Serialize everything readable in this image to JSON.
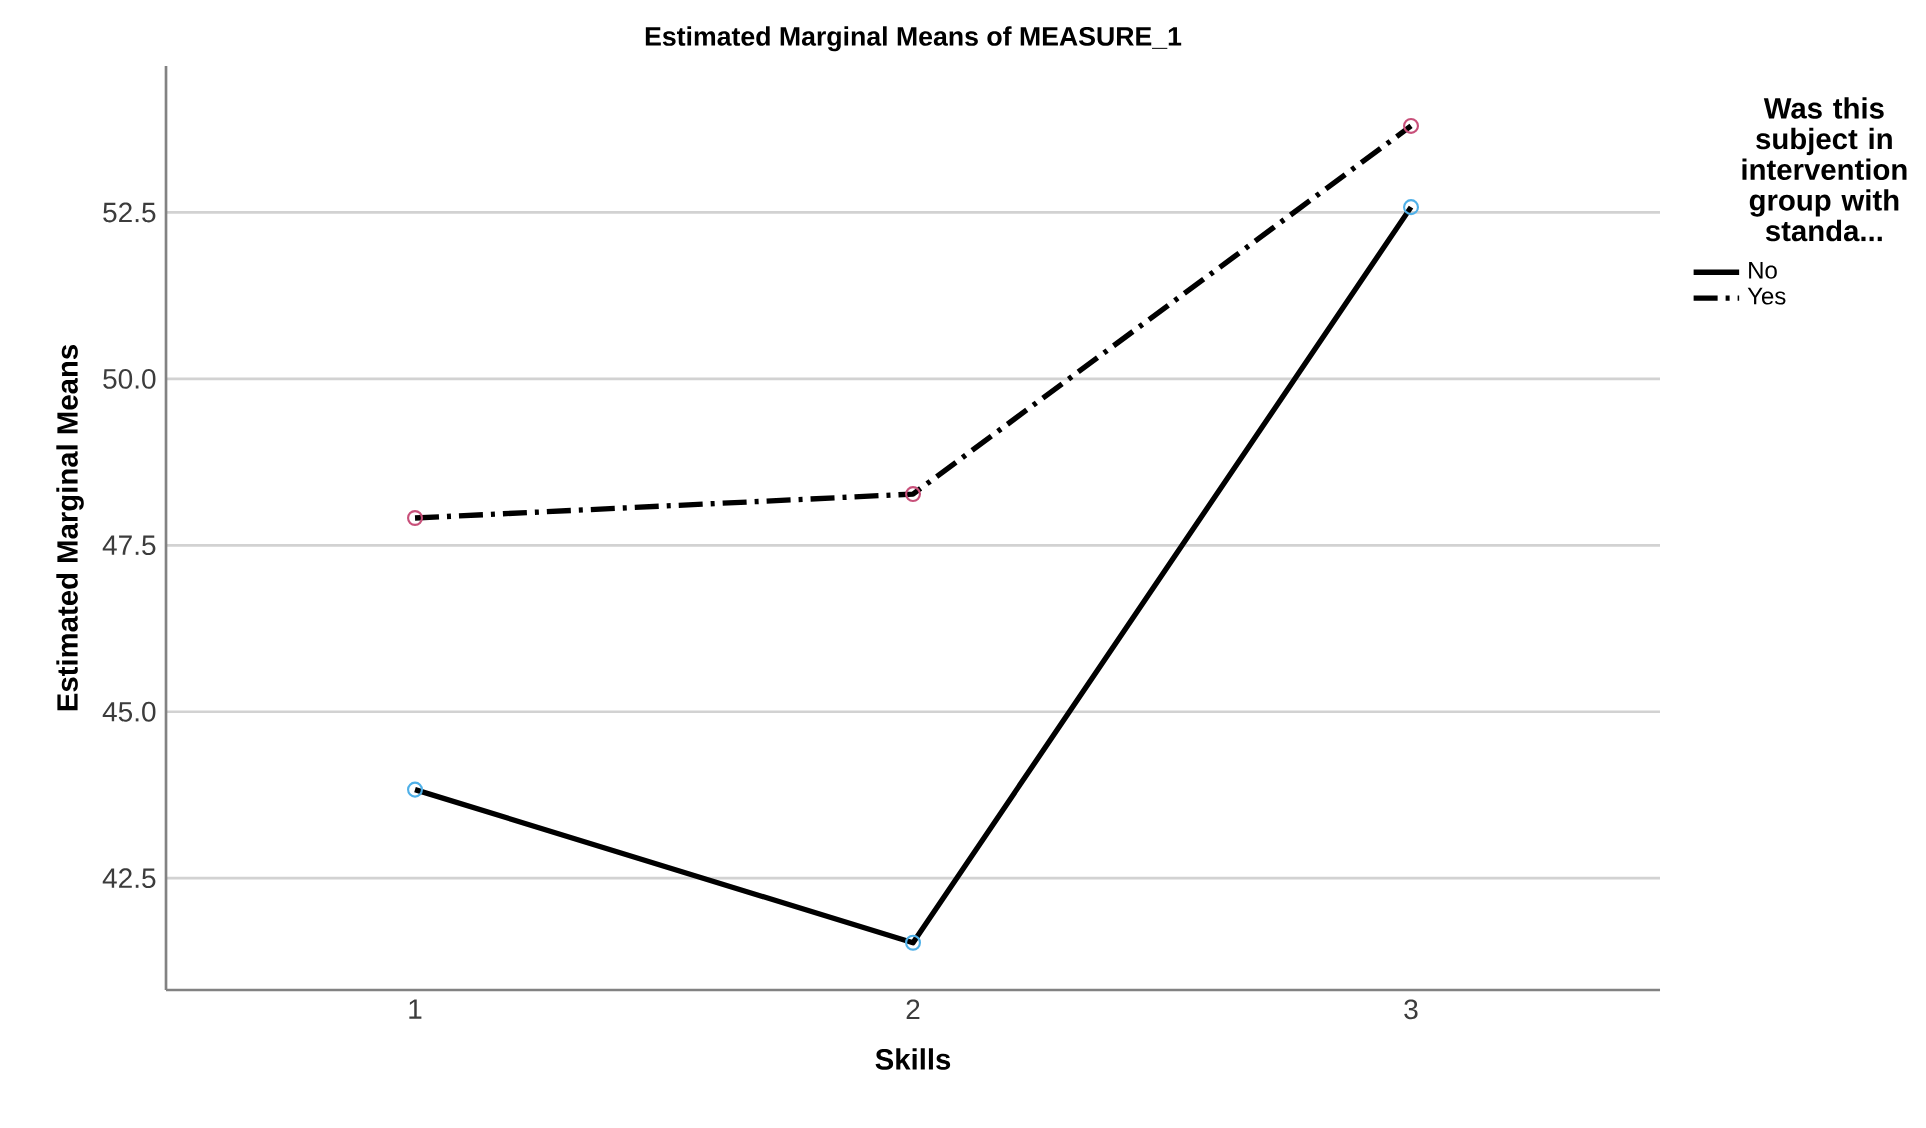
{
  "chart_data": {
    "type": "line",
    "title": "Estimated Marginal Means of MEASURE_1",
    "xlabel": "Skills",
    "ylabel": "Estimated Marginal Means",
    "legend_title": "Was this subject in intervention group with standa...",
    "categories": [
      "1",
      "2",
      "3"
    ],
    "series": [
      {
        "name": "No",
        "color": "#000000",
        "colors": [
          "#4fb0e8",
          "#4fb0e8",
          "#4fb0e8"
        ],
        "line_style": "solid",
        "values": [
          43.83,
          41.53,
          52.58
        ]
      },
      {
        "name": "Yes",
        "color": "#000000",
        "colors": [
          "#c8507a",
          "#c8507a",
          "#c8507a"
        ],
        "line_style": "dashed",
        "values": [
          47.91,
          48.27,
          53.8
        ]
      }
    ],
    "ylim": [
      40.82,
      54.7
    ],
    "yticks": [
      {
        "value": 42.5,
        "label": "42.5"
      },
      {
        "value": 45,
        "label": "45.0"
      },
      {
        "value": 47.5,
        "label": "47.5"
      },
      {
        "value": 50,
        "label": "50.0"
      },
      {
        "value": 52.5,
        "label": "52.5"
      }
    ],
    "grid": "y",
    "legend": "top right",
    "marker": "circle"
  }
}
